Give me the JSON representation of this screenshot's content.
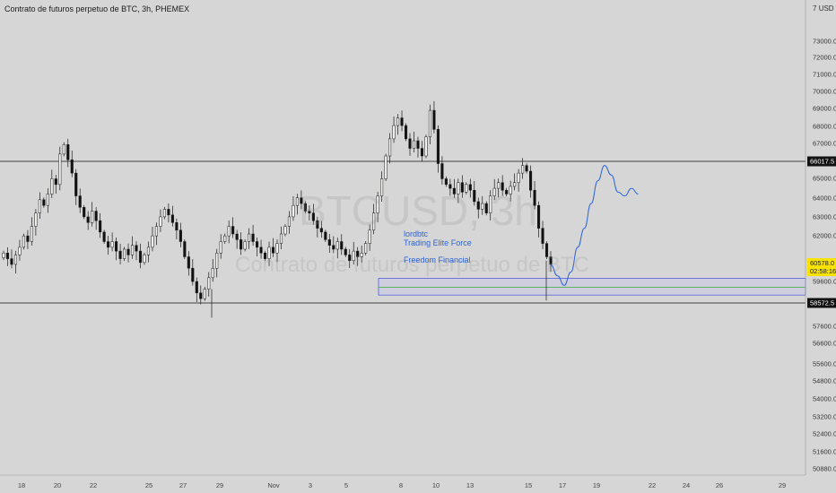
{
  "header": {
    "title": "Contrato de futuros perpetuo de BTC, 3h, PHEMEX",
    "currency": "USD",
    "currency_prefix": "7"
  },
  "watermark": {
    "symbol": "BTCUSD, 3h",
    "name": "Contrato de futuros perpetuo de BTC"
  },
  "annotations": [
    "lordbtc",
    "Trading Elite Force",
    "Freedom Financial"
  ],
  "price_tags": {
    "resistance": "66017.5",
    "support": "58572.5",
    "last_price": "60578.0",
    "countdown": "02:58:16"
  },
  "colors": {
    "background": "#d6d6d6",
    "candle_up": "#f2f2ee",
    "candle_down": "#111111",
    "projection": "#2b63d9",
    "zone_fill": "#c9c9e8",
    "zone_border": "#2b3bd9",
    "zone_mid_line": "#4caf50",
    "level_line": "#111111",
    "last_price_tag": "#f7e200"
  },
  "chart_data": {
    "type": "candlestick",
    "title": "Contrato de futuros perpetuo de BTC, 3h, PHEMEX",
    "ylabel": "USD",
    "ylim": [
      50500,
      74600
    ],
    "y_ticks": [
      "73000.0",
      "72000.0",
      "71000.0",
      "70000.0",
      "69000.0",
      "68000.0",
      "67000.0",
      "65000.0",
      "64000.0",
      "63000.0",
      "62000.0",
      "59600.0",
      "57600.0",
      "56600.0",
      "55600.0",
      "54800.0",
      "54000.0",
      "53200.0",
      "52400.0",
      "51600.0",
      "50880.0"
    ],
    "x_ticks": [
      "18",
      "20",
      "22",
      "25",
      "27",
      "29",
      "Nov",
      "3",
      "5",
      "8",
      "10",
      "13",
      "15",
      "17",
      "19",
      "22",
      "24",
      "26",
      "29"
    ],
    "horizontal_levels": [
      66017.5,
      58572.5
    ],
    "last_price": 60578.0,
    "zone": {
      "top": 59870,
      "mid": 59400,
      "bottom": 58990
    },
    "candle_closes": [
      61200,
      60900,
      60600,
      61100,
      61500,
      62100,
      61800,
      62600,
      63300,
      64000,
      63700,
      64300,
      65100,
      64800,
      66400,
      66900,
      66100,
      65400,
      64200,
      63600,
      63100,
      62800,
      63400,
      62900,
      62300,
      61800,
      61500,
      61800,
      61300,
      60900,
      61400,
      61100,
      61600,
      61300,
      60700,
      61100,
      61500,
      62100,
      62600,
      63100,
      63500,
      63200,
      62800,
      62400,
      61800,
      61000,
      60400,
      59700,
      59100,
      58800,
      59300,
      59900,
      60400,
      61200,
      61800,
      62100,
      62600,
      62200,
      61900,
      61400,
      61800,
      62200,
      61800,
      61500,
      61200,
      60900,
      61500,
      61200,
      61700,
      62200,
      62600,
      63100,
      63700,
      64100,
      63800,
      63400,
      63300,
      62900,
      62500,
      62300,
      61900,
      61600,
      61400,
      61800,
      61400,
      61100,
      60800,
      61300,
      61000,
      61200,
      61700,
      62400,
      63300,
      64200,
      65100,
      66300,
      67200,
      67900,
      68300,
      67900,
      67200,
      66700,
      67100,
      66700,
      66300,
      67300,
      68700,
      67700,
      65900,
      65100,
      64800,
      64600,
      64300,
      64900,
      64400,
      64800,
      64500,
      63900,
      63500,
      63800,
      63300,
      64200,
      64600,
      64900,
      64500,
      64300,
      64700,
      64900,
      65400,
      65800,
      65500,
      64500,
      63700,
      62500,
      61700,
      61000,
      60600
    ],
    "projection_path": [
      [
        60578,
        0
      ],
      [
        60000,
        1
      ],
      [
        59500,
        2
      ],
      [
        60200,
        3
      ],
      [
        61500,
        4
      ],
      [
        62500,
        5
      ],
      [
        63800,
        6
      ],
      [
        65000,
        7
      ],
      [
        65800,
        8
      ],
      [
        65300,
        9
      ],
      [
        64400,
        10
      ],
      [
        64200,
        11
      ],
      [
        64600,
        12
      ],
      [
        64300,
        13
      ]
    ],
    "projection_path_note": "projected price values (USD), index = step along forecast"
  }
}
